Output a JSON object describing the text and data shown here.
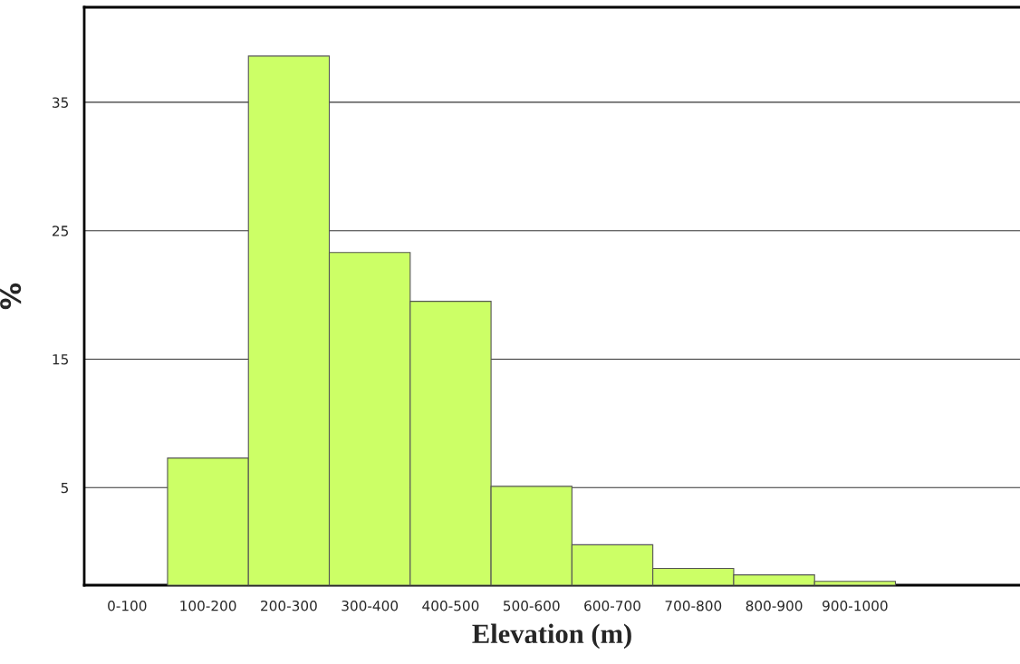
{
  "chart_data": {
    "type": "bar",
    "categories": [
      "0-100",
      "100-200",
      "200-300",
      "300-400",
      "400-500",
      "500-600",
      "600-700",
      "700-800",
      "800-900",
      "900-1000"
    ],
    "values": [
      null,
      9.9,
      41.2,
      25.9,
      22.1,
      7.7,
      3.15,
      1.3,
      0.8,
      0.3
    ],
    "base": [
      null,
      -2.6,
      -2.6,
      -2.6,
      -2.6,
      -2.6,
      -2.6,
      -2.6,
      -2.6,
      -2.6
    ],
    "color": "#ccff66",
    "xlabel": "Elevation (m)",
    "ylabel": "%",
    "ylim": [
      -2.6,
      42.4
    ],
    "yticks": [
      5,
      15,
      25,
      35
    ],
    "grid": "y",
    "legend": false
  }
}
